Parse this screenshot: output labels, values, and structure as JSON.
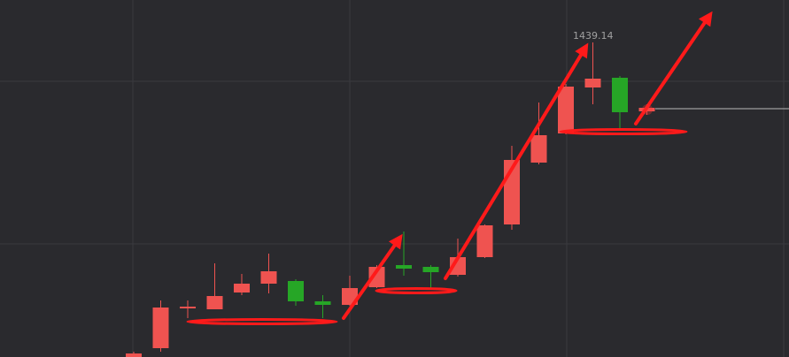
{
  "chart_data": {
    "type": "candlestick",
    "annotation": "1439.14",
    "up_color": "#ef5350",
    "down_color": "#26a626",
    "ylim": [
      1261.14,
      1463.14
    ],
    "open": [
      1261.14,
      1266.14,
      1288.64,
      1288.14,
      1297.64,
      1302.64,
      1304.14,
      1292.64,
      1290.64,
      1300.64,
      1313.14,
      1312.14,
      1307.64,
      1317.64,
      1336.14,
      1371.14,
      1387.64,
      1413.64,
      1419.14,
      1400.14
    ],
    "high": [
      1264.14,
      1293.14,
      1293.14,
      1314.14,
      1308.14,
      1319.64,
      1305.14,
      1296.14,
      1307.14,
      1313.14,
      1332.14,
      1313.14,
      1328.14,
      1336.14,
      1380.64,
      1405.14,
      1415.64,
      1439.14,
      1420.14,
      1404.14
    ],
    "low": [
      1261.14,
      1264.14,
      1283.14,
      1288.14,
      1296.14,
      1297.14,
      1290.14,
      1283.14,
      1290.14,
      1300.14,
      1307.14,
      1300.14,
      1306.64,
      1317.14,
      1333.14,
      1370.14,
      1387.14,
      1404.14,
      1390.14,
      1398.14
    ],
    "close": [
      1263.14,
      1289.14,
      1289.64,
      1295.64,
      1302.64,
      1309.64,
      1292.64,
      1290.64,
      1300.14,
      1312.14,
      1311.14,
      1309.14,
      1317.64,
      1335.64,
      1372.64,
      1386.64,
      1414.14,
      1418.64,
      1399.64,
      1402.14
    ]
  }
}
